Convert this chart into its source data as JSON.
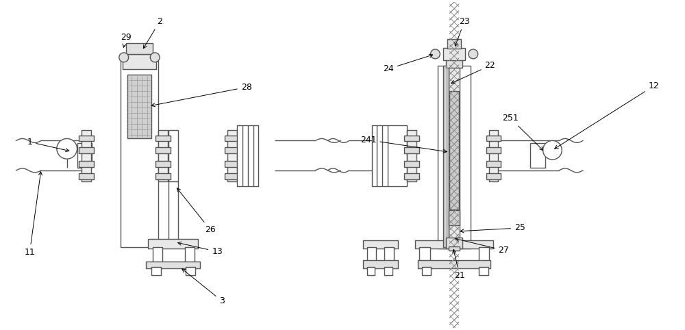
{
  "bg_color": "#ffffff",
  "line_color": "#555555",
  "lw": 1.0,
  "fig_width": 10.0,
  "fig_height": 4.82
}
